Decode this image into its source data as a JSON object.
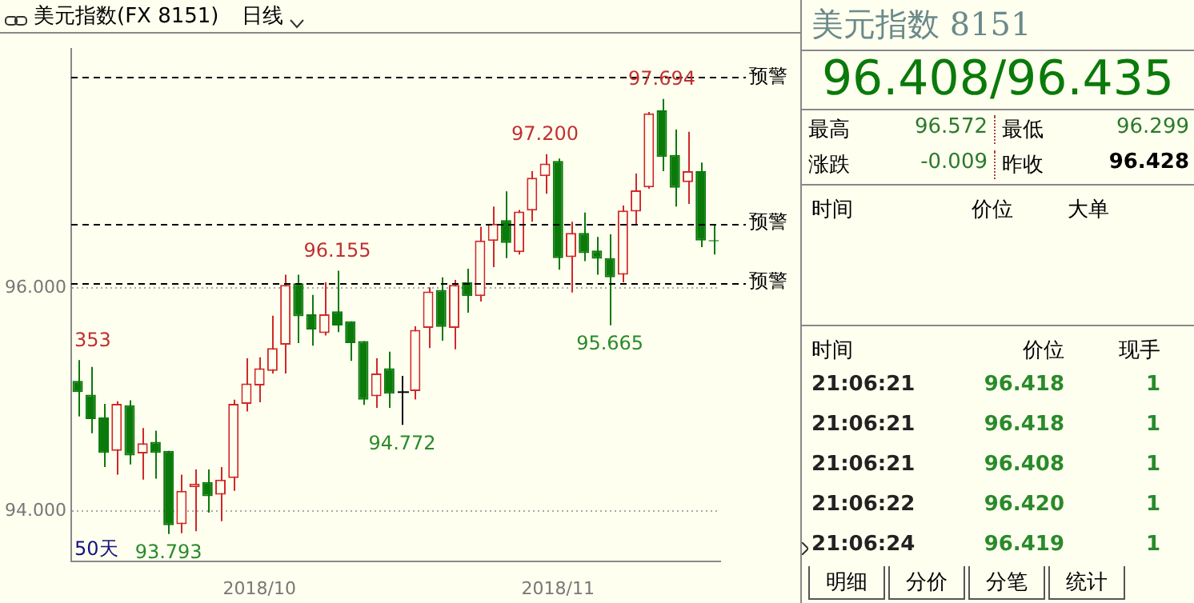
{
  "chart_data": [
    {
      "type": "candlestick",
      "title": "美元指数(FX 8151)",
      "subtitle": "日线",
      "categories": [
        null,
        null,
        null,
        null,
        null,
        null,
        null,
        null,
        null,
        null,
        null,
        null,
        null,
        null,
        "2018/10",
        null,
        null,
        null,
        null,
        null,
        null,
        null,
        null,
        null,
        null,
        null,
        null,
        null,
        null,
        null,
        null,
        null,
        null,
        null,
        null,
        null,
        null,
        "2018/11",
        null,
        null,
        null,
        null,
        null,
        null,
        null,
        null,
        null,
        null,
        null,
        null
      ],
      "ohlc": [
        [
          95.166,
          95.353,
          94.848,
          95.066
        ],
        [
          95.043,
          95.293,
          94.698,
          94.825
        ],
        [
          94.839,
          94.961,
          94.395,
          94.522
        ],
        [
          94.54,
          94.984,
          94.327,
          94.961
        ],
        [
          94.948,
          94.993,
          94.417,
          94.499
        ],
        [
          94.517,
          94.744,
          94.281,
          94.608
        ],
        [
          94.621,
          94.721,
          94.29,
          94.522
        ],
        [
          94.54,
          94.54,
          93.793,
          93.873
        ],
        [
          93.882,
          94.327,
          93.8,
          94.181
        ],
        [
          94.213,
          94.372,
          93.819,
          94.245
        ],
        [
          94.259,
          94.372,
          93.986,
          94.132
        ],
        [
          94.146,
          94.395,
          93.909,
          94.281
        ],
        [
          94.295,
          94.998,
          94.181,
          94.961
        ],
        [
          94.961,
          95.37,
          94.893,
          95.143
        ],
        [
          95.125,
          95.379,
          94.975,
          95.279
        ],
        [
          95.256,
          95.751,
          95.234,
          95.46
        ],
        [
          95.492,
          96.118,
          95.234,
          96.027
        ],
        [
          96.041,
          96.118,
          95.506,
          95.746
        ],
        [
          95.764,
          95.937,
          95.483,
          95.628
        ],
        [
          95.596,
          96.05,
          95.574,
          95.764
        ],
        [
          95.791,
          96.155,
          95.605,
          95.664
        ],
        [
          95.701,
          95.701,
          95.347,
          95.506
        ],
        [
          95.524,
          95.524,
          94.952,
          94.998
        ],
        [
          95.029,
          95.37,
          94.925,
          95.234
        ],
        [
          95.279,
          95.429,
          94.925,
          95.052
        ],
        [
          95.066,
          95.211,
          94.772,
          95.066
        ],
        [
          95.075,
          95.656,
          95.0,
          95.624
        ],
        [
          95.642,
          96.005,
          95.46,
          95.968
        ],
        [
          95.982,
          96.095,
          95.528,
          95.651
        ],
        [
          95.642,
          96.073,
          95.451,
          96.027
        ],
        [
          96.05,
          96.172,
          95.778,
          95.927
        ],
        [
          95.927,
          96.549,
          95.878,
          96.426
        ],
        [
          96.422,
          96.73,
          96.186,
          96.576
        ],
        [
          96.608,
          96.866,
          96.268,
          96.404
        ],
        [
          96.322,
          96.7,
          96.3,
          96.685
        ],
        [
          96.694,
          97.048,
          96.594,
          96.989
        ],
        [
          97.002,
          97.2,
          96.844,
          97.116
        ],
        [
          97.138,
          97.161,
          96.163,
          96.268
        ],
        [
          96.277,
          96.594,
          95.959,
          96.494
        ],
        [
          96.494,
          96.676,
          96.24,
          96.313
        ],
        [
          96.336,
          96.458,
          96.118,
          96.263
        ],
        [
          96.268,
          96.481,
          95.665,
          96.095
        ],
        [
          96.118,
          96.739,
          96.05,
          96.694
        ],
        [
          96.685,
          97.025,
          96.571,
          96.875
        ],
        [
          96.902,
          97.578,
          96.889,
          97.565
        ],
        [
          97.592,
          97.694,
          97.048,
          97.175
        ],
        [
          97.193,
          97.42,
          96.73,
          96.898
        ],
        [
          96.948,
          97.401,
          96.753,
          97.048
        ],
        [
          97.048,
          97.125,
          96.367,
          96.426
        ],
        [
          96.428,
          96.572,
          96.299,
          96.419
        ]
      ],
      "ylim": [
        93.551,
        98.143
      ],
      "yticks": [
        {
          "value": 94,
          "label": "94.000"
        },
        {
          "value": 96,
          "label": "96.000"
        }
      ],
      "grid": "y",
      "ref_lines": [
        {
          "axis": "y",
          "value": 97.891,
          "label": "预警",
          "color": "#000000",
          "line_style": "dashed"
        },
        {
          "axis": "y",
          "value": 96.58,
          "label": "预警",
          "color": "#000000",
          "line_style": "dashed"
        },
        {
          "axis": "y",
          "value": 96.05,
          "label": "预警",
          "color": "#000000",
          "line_style": "dashed"
        }
      ],
      "annotations": [
        {
          "text": "353",
          "y": 95.353
        },
        {
          "text": "93.793",
          "y": 93.793
        },
        {
          "text": "96.155",
          "y": 96.155
        },
        {
          "text": "94.772",
          "y": 94.772
        },
        {
          "text": "97.200",
          "y": 97.2
        },
        {
          "text": "95.665",
          "y": 95.665
        },
        {
          "text": "97.694",
          "y": 97.694
        },
        "50天"
      ]
    },
    {
      "type": "other",
      "annotations": [
        "美元指数 8151",
        "96.408/96.435",
        "最高",
        "96.572",
        "最低",
        "96.299",
        "涨跌",
        "-0.009",
        "昨收",
        "96.428",
        "时间",
        "价位",
        "大单",
        "时间",
        "价位",
        "现手",
        "21:06:21",
        "96.418",
        "1",
        "21:06:21",
        "96.418",
        "1",
        "21:06:21",
        "96.408",
        "1",
        "21:06:22",
        "96.420",
        "1",
        "21:06:24",
        "96.419",
        "1",
        "明细",
        "分价",
        "分笔",
        "统计"
      ]
    }
  ]
}
